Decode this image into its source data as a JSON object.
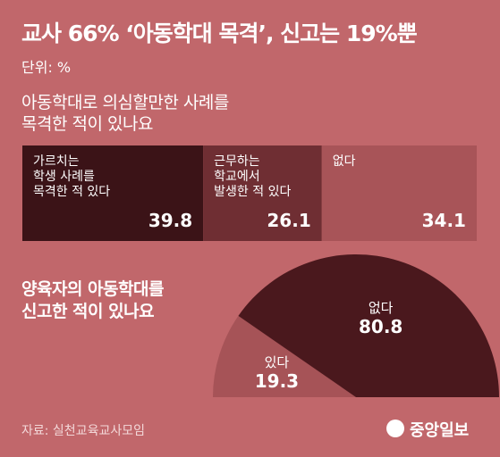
{
  "header": {
    "title": "교사 66% ‘아동학대 목격’, 신고는 19%뿐",
    "unit": "단위: %"
  },
  "chart_data": [
    {
      "type": "stacked-bar",
      "title": "아동학대로 의심할만한 사례를\n목격한 적이 있나요",
      "categories": [
        "가르치는\n학생 사례를\n목격한 적 있다",
        "근무하는\n학교에서\n발생한 적 있다",
        "없다"
      ],
      "values": [
        39.8,
        26.1,
        34.1
      ],
      "colors": [
        "#3b1317",
        "#6f2e33",
        "#a85458"
      ]
    },
    {
      "type": "half-pie",
      "title": "양육자의 아동학대를\n신고한 적이 있나요",
      "categories": [
        "있다",
        "없다"
      ],
      "values": [
        19.3,
        80.8
      ],
      "colors": [
        "#a65357",
        "#4a181d"
      ]
    }
  ],
  "source": "자료: 실천교육교사모임",
  "logo": "중앙일보"
}
